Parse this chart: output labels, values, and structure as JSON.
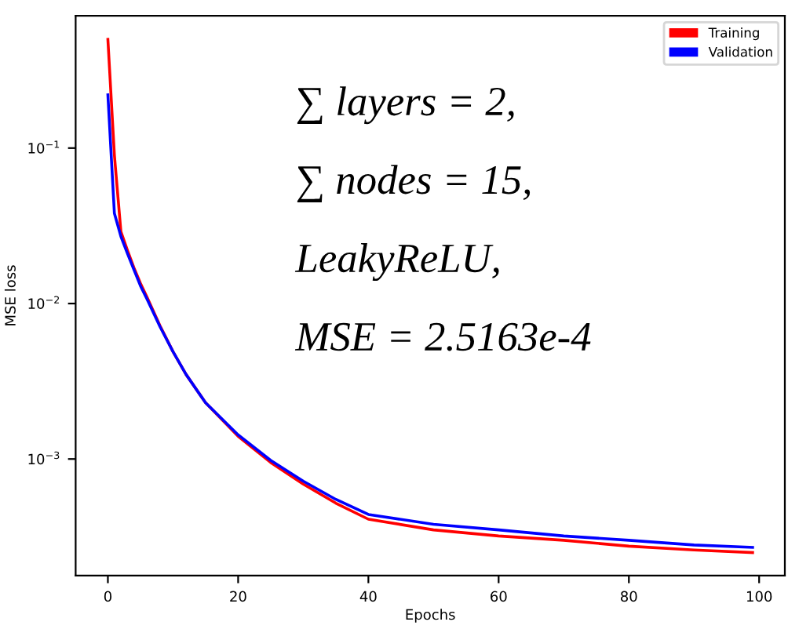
{
  "chart_data": {
    "type": "line",
    "xlabel": "Epochs",
    "ylabel": "MSE loss",
    "log": "y",
    "legend": "top right",
    "grid": false,
    "xlim": [
      -4.95,
      103.95
    ],
    "xticks": [
      0,
      20,
      40,
      60,
      80,
      100
    ],
    "ylim": [
      0.000178,
      0.71
    ],
    "yticks": [
      {
        "value": 0.001,
        "label": "10$^{−3}$"
      },
      {
        "value": 0.01,
        "label": "10$^{−2}$"
      },
      {
        "value": 0.1,
        "label": "10$^{−1}$"
      }
    ],
    "x": [
      0,
      1,
      2,
      3,
      4,
      5,
      6,
      8,
      10,
      12,
      15,
      20,
      25,
      30,
      35,
      40,
      50,
      60,
      70,
      80,
      90,
      99
    ],
    "series": [
      {
        "name": "Training",
        "color": "#ff0000",
        "values": [
          0.5,
          0.09,
          0.029,
          0.022,
          0.017,
          0.0135,
          0.011,
          0.0072,
          0.0049,
          0.0035,
          0.0023,
          0.0014,
          0.00095,
          0.00069,
          0.00052,
          0.00041,
          0.00035,
          0.00032,
          0.0003,
          0.000275,
          0.00026,
          0.00025
        ]
      },
      {
        "name": "Validation",
        "color": "#0000ff",
        "values": [
          0.22,
          0.038,
          0.027,
          0.021,
          0.0165,
          0.013,
          0.0107,
          0.0071,
          0.0049,
          0.0035,
          0.0023,
          0.00143,
          0.00098,
          0.00072,
          0.00055,
          0.00044,
          0.00038,
          0.00035,
          0.00032,
          0.0003,
          0.00028,
          0.00027
        ]
      }
    ],
    "annotations": [
      "∑ layers = 2,",
      "∑ nodes = 15,",
      "LeakyReLU,",
      "MSE = 2.5163e-4"
    ]
  }
}
